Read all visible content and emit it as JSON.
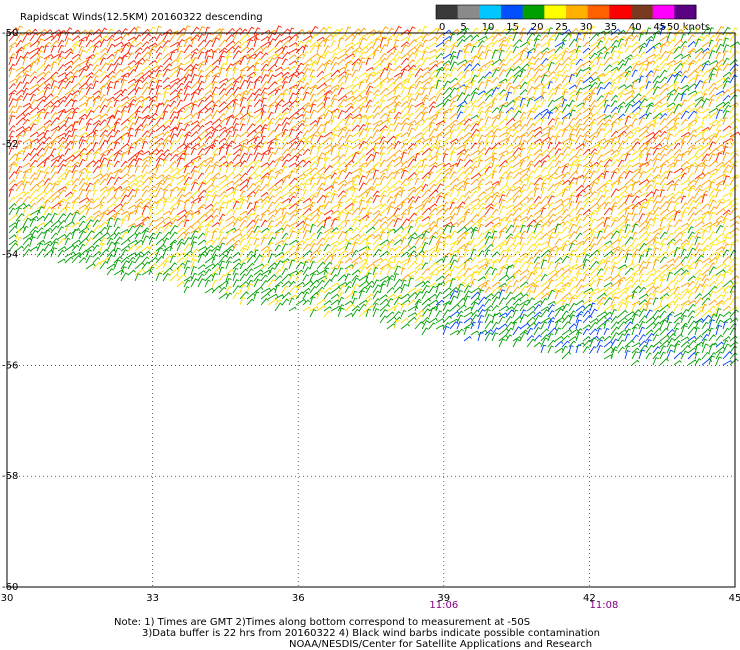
{
  "title": "Rapidscat Winds(12.5KM) 20160322 descending",
  "legend": {
    "labels": [
      "0",
      "5",
      "10",
      "15",
      "20",
      "25",
      "30",
      "35",
      "40",
      "45",
      ">50 knots"
    ],
    "colors": [
      "#3a3a3a",
      "#8a8a8a",
      "#00c8ff",
      "#0050ff",
      "#00a000",
      "#ffff00",
      "#ffb000",
      "#ff6000",
      "#ff0000",
      "#7a3a20",
      "#ff00ff",
      "#5a0080"
    ]
  },
  "map": {
    "lon_ticks": [
      "30",
      "33",
      "36",
      "39",
      "42",
      "45"
    ],
    "lat_ticks": [
      "-50",
      "-52",
      "-54",
      "-56",
      "-58",
      "-60"
    ],
    "lon_range": [
      30,
      45
    ],
    "lat_range": [
      -60,
      -50
    ],
    "grid": true,
    "times": [
      {
        "label": "11:06",
        "lon": 39
      },
      {
        "label": "11:08",
        "lon": 42.3
      }
    ]
  },
  "notes": {
    "line1": "Note: 1) Times are GMT 2)Times along bottom correspond to measurement at -50S",
    "line2": "3)Data buffer is 22 hrs from 20160322 4) Black wind barbs indicate possible contamination",
    "line3": "NOAA/NESDIS/Center for Satellite Applications and Research"
  },
  "colors": {
    "barb_red": "#ff2000",
    "barb_orange": "#ffa000",
    "barb_yellow": "#ffe000",
    "barb_green": "#00a000",
    "barb_blue": "#0040ff"
  }
}
